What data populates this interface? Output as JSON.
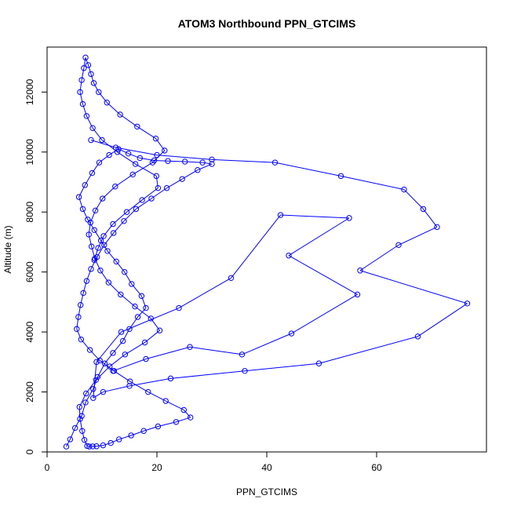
{
  "chart_data": {
    "type": "scatter",
    "title": "ATOM3 Northbound PPN_GTCIMS",
    "xlabel": "PPN_GTCIMS",
    "ylabel": "Altitude (m)",
    "xlim": [
      0,
      80
    ],
    "ylim": [
      0,
      13500
    ],
    "x_ticks": [
      0,
      20,
      40,
      60
    ],
    "x_tick_labels": [
      "0",
      "20",
      "40",
      "60"
    ],
    "y_ticks": [
      0,
      2000,
      4000,
      6000,
      8000,
      10000,
      12000
    ],
    "y_tick_labels": [
      "0",
      "2000",
      "4000",
      "6000",
      "8000",
      "10000",
      "12000"
    ],
    "grid": false,
    "legend": "none",
    "marker": "open-circle",
    "connected": true,
    "series_color": "#0000FF",
    "x": [
      3.5,
      4.2,
      5.1,
      6.3,
      7.0,
      8.4,
      9.2,
      10.5,
      12.0,
      13.8,
      15.0,
      16.5,
      18.0,
      17.2,
      15.4,
      14.1,
      12.6,
      11.0,
      9.8,
      8.6,
      7.4,
      6.5,
      5.8,
      6.9,
      8.2,
      9.5,
      11.3,
      13.0,
      14.8,
      16.9,
      19.5,
      22.0,
      25.1,
      28.3,
      30.0,
      27.4,
      24.6,
      21.8,
      19.0,
      16.2,
      14.0,
      12.1,
      10.4,
      9.1,
      8.0,
      7.2,
      6.6,
      6.1,
      5.7,
      5.4,
      6.2,
      7.8,
      9.6,
      12.2,
      15.1,
      18.4,
      21.6,
      24.9,
      26.1,
      23.5,
      20.2,
      17.6,
      15.3,
      13.1,
      11.6,
      10.2,
      9.0,
      8.3,
      7.7,
      7.3,
      6.8,
      6.4,
      6.0,
      5.9,
      7.1,
      8.9,
      11.4,
      14.2,
      17.8,
      20.5,
      18.9,
      16.0,
      13.4,
      11.2,
      9.7,
      8.7,
      8.1,
      7.6,
      7.9,
      8.8,
      10.1,
      12.4,
      15.6,
      19.2,
      21.4,
      19.8,
      16.4,
      13.3,
      10.9,
      9.4,
      8.5,
      8.0,
      7.5,
      7.0,
      6.7,
      6.3,
      6.0,
      6.5,
      7.2,
      8.3,
      10.0,
      12.8,
      16.1,
      19.9,
      20.2,
      17.3,
      14.5,
      12.0,
      10.3,
      9.3,
      8.6
    ],
    "y": [
      180,
      420,
      800,
      1200,
      1650,
      2100,
      2500,
      2950,
      3300,
      3700,
      4100,
      4500,
      4800,
      5200,
      5600,
      6000,
      6350,
      6700,
      7050,
      7400,
      7750,
      8100,
      8500,
      8900,
      9300,
      9650,
      9900,
      10100,
      9950,
      9800,
      9720,
      9700,
      9680,
      9650,
      9600,
      9400,
      9100,
      8800,
      8450,
      8100,
      7700,
      7300,
      6900,
      6500,
      6100,
      5700,
      5300,
      4900,
      4500,
      4100,
      3750,
      3400,
      3050,
      2700,
      2350,
      2000,
      1700,
      1400,
      1150,
      1000,
      850,
      700,
      550,
      420,
      300,
      220,
      190,
      185,
      180,
      200,
      400,
      700,
      1100,
      1500,
      1950,
      2400,
      2850,
      3250,
      3650,
      4050,
      4450,
      4850,
      5250,
      5650,
      6050,
      6450,
      6850,
      7250,
      7650,
      8050,
      8450,
      8850,
      9250,
      9650,
      10050,
      10450,
      10850,
      11250,
      11650,
      12000,
      12300,
      12600,
      12900,
      13150,
      12800,
      12400,
      12000,
      11600,
      11200,
      10800,
      10400,
      10000,
      9600,
      9200,
      8800,
      8400,
      8000,
      7600,
      7200,
      6800,
      6400
    ],
    "series2_x": [
      8.0,
      12.5,
      20.0,
      30.0,
      41.5,
      53.5,
      65.0,
      68.5,
      71.0,
      64.0,
      57.0,
      76.5,
      67.5,
      49.5,
      36.0,
      22.5,
      15.0,
      10.2,
      8.4,
      9.0,
      13.5,
      24.0,
      33.5,
      42.5,
      55.0,
      44.0,
      56.5,
      44.5,
      35.5,
      26.0,
      18.0,
      12.0
    ],
    "series2_y": [
      10400,
      10150,
      9900,
      9750,
      9650,
      9200,
      8750,
      8100,
      7500,
      6900,
      6050,
      4950,
      3850,
      2950,
      2700,
      2450,
      2200,
      2000,
      1800,
      3000,
      4000,
      4800,
      5800,
      7900,
      7800,
      6550,
      5250,
      3950,
      3250,
      3500,
      3100,
      2700
    ]
  }
}
